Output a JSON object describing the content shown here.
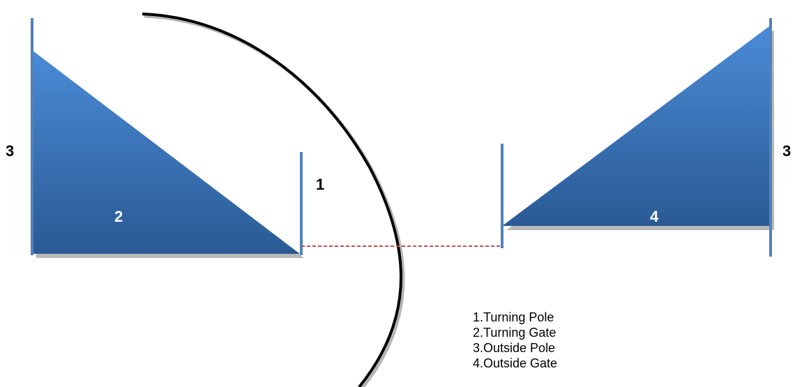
{
  "labels": {
    "outside_pole_left": "3",
    "outside_pole_right": "3",
    "turning_pole": "1",
    "turning_gate": "2",
    "outside_gate": "4"
  },
  "legend": [
    "1.Turning Pole",
    "2.Turning Gate",
    "3.Outside Pole",
    "4.Outside Gate"
  ],
  "colors": {
    "gate_fill_light": "#4a8bd6",
    "gate_fill_dark": "#2a5a94",
    "pole": "#4f81bd",
    "arc": "#000000",
    "dashed_line": "#c0504d"
  }
}
